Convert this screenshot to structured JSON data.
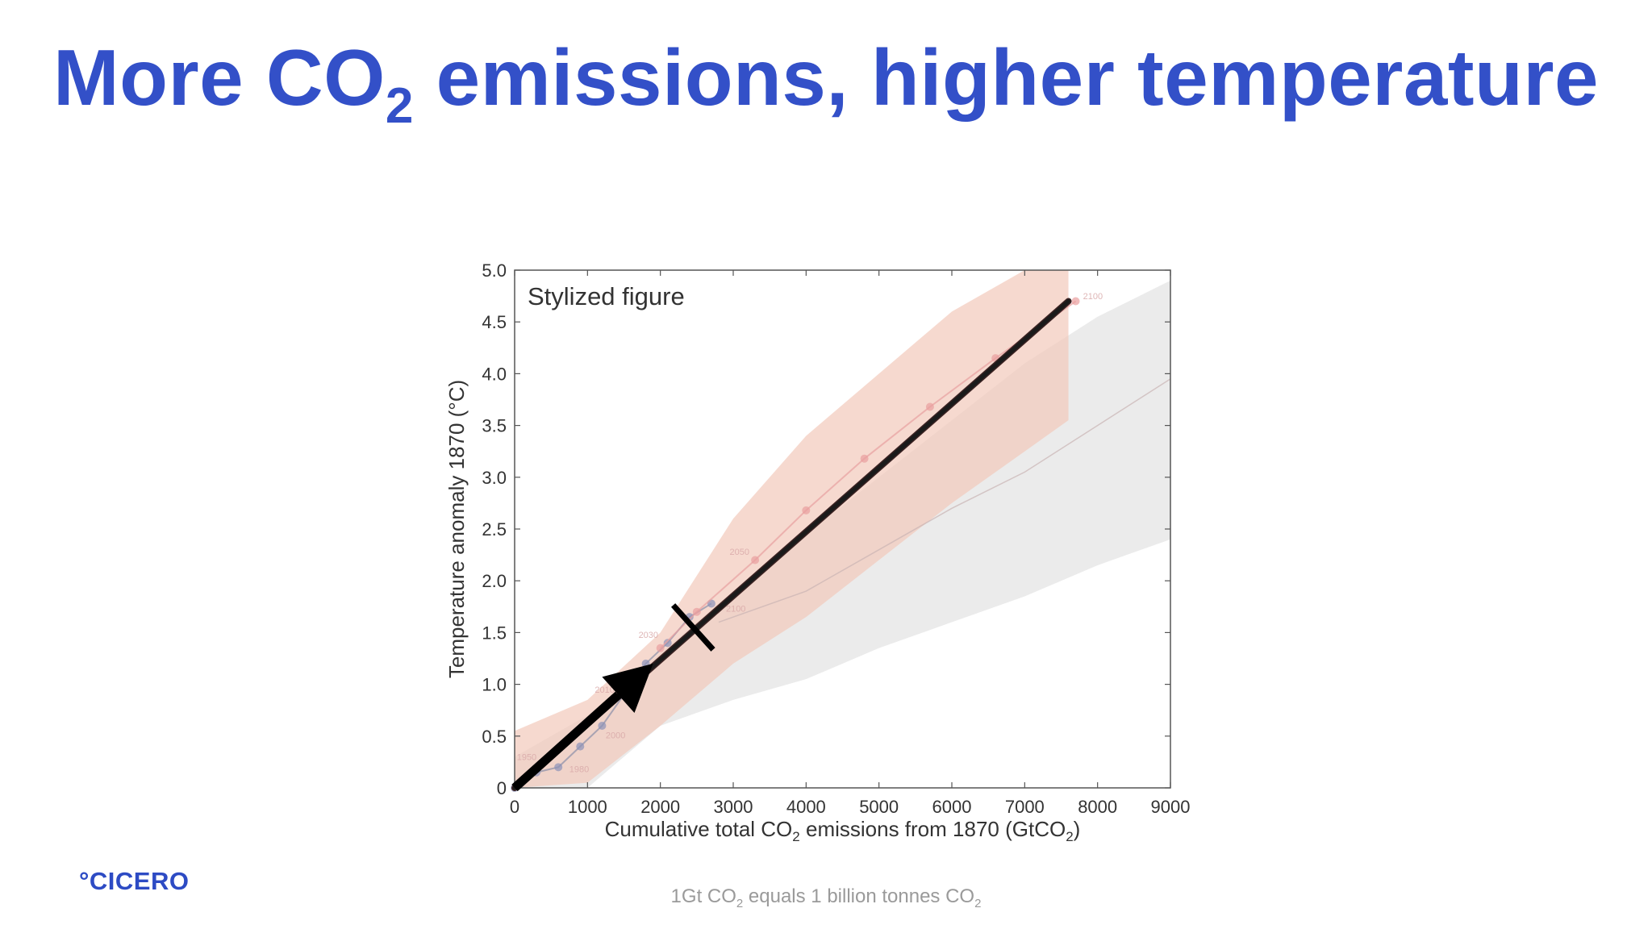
{
  "slide": {
    "title_pre": "More CO",
    "title_sub": "2",
    "title_post": " emissions, higher temperature"
  },
  "logo": "°CICERO",
  "footnote": {
    "pre": "1Gt CO",
    "sub1": "2",
    "mid": " equals 1 billion tonnes CO",
    "sub2": "2"
  },
  "colors": {
    "title": "#3350c8",
    "logo": "#2d4bc4",
    "main_line": "#1a1a1a",
    "red_band": "#f2c9bb",
    "grey_band": "#e4e4e4",
    "red_series": "#e8a0a0",
    "blue_points": "#7f86cc"
  },
  "chart_data": {
    "type": "line",
    "annotation": "Stylized figure",
    "xlabel_pre": "Cumulative total CO",
    "xlabel_sub": "2",
    "xlabel_mid": " emissions from 1870 (GtCO",
    "xlabel_sub2": "2",
    "xlabel_post": ")",
    "ylabel": "Temperature anomaly 1870 (°C)",
    "xlim": [
      0,
      9000
    ],
    "ylim": [
      0,
      5
    ],
    "x_ticks": [
      0,
      1000,
      2000,
      3000,
      4000,
      5000,
      6000,
      7000,
      8000,
      9000
    ],
    "x_tick_labels": [
      "0",
      "1000",
      "2000",
      "3000",
      "4000",
      "5000",
      "6000",
      "7000",
      "8000",
      "9000"
    ],
    "y_ticks": [
      0,
      0.5,
      1.0,
      1.5,
      2.0,
      2.5,
      3.0,
      3.5,
      4.0,
      4.5,
      5.0
    ],
    "y_tick_labels": [
      "0",
      "0.5",
      "1.0",
      "1.5",
      "2.0",
      "2.5",
      "3.0",
      "3.5",
      "4.0",
      "4.5",
      "5.0"
    ],
    "grid": false,
    "stylized_line": {
      "x": [
        0,
        7600
      ],
      "y": [
        0,
        4.7
      ]
    },
    "arrow": {
      "x": [
        0,
        1900
      ],
      "y": [
        0,
        1.2
      ]
    },
    "marker": {
      "x": 2450,
      "y": 1.55
    },
    "red_band": {
      "x": [
        0,
        1000,
        2000,
        3000,
        4000,
        5000,
        6000,
        7000,
        7600
      ],
      "upper": [
        0.55,
        0.85,
        1.5,
        2.6,
        3.4,
        4.0,
        4.6,
        5.0,
        5.0
      ],
      "lower": [
        0.0,
        0.05,
        0.6,
        1.2,
        1.65,
        2.2,
        2.75,
        3.25,
        3.55
      ]
    },
    "grey_band": {
      "x": [
        0,
        1000,
        2000,
        3000,
        4000,
        5000,
        6000,
        7000,
        8000,
        9000
      ],
      "upper": [
        0.3,
        0.7,
        1.3,
        1.9,
        2.45,
        3.0,
        3.55,
        4.1,
        4.55,
        4.9
      ],
      "lower": [
        0.0,
        0.0,
        0.6,
        0.85,
        1.05,
        1.35,
        1.6,
        1.85,
        2.15,
        2.4
      ]
    },
    "series": [
      {
        "x": [
          0,
          300,
          600,
          900,
          1200,
          1500,
          1800,
          2100,
          2400,
          2700
        ],
        "y": [
          0.0,
          0.15,
          0.2,
          0.4,
          0.6,
          0.9,
          1.2,
          1.4,
          1.65,
          1.78
        ]
      },
      {
        "x": [
          2000,
          2500,
          3300,
          4000,
          4800,
          5700,
          6600,
          7700
        ],
        "y": [
          1.35,
          1.7,
          2.2,
          2.68,
          3.18,
          3.68,
          4.15,
          4.7
        ]
      },
      {
        "x": [
          2800,
          4000,
          5000,
          6000,
          7000,
          8000,
          9000
        ],
        "y": [
          1.6,
          1.9,
          2.3,
          2.7,
          3.05,
          3.5,
          3.95
        ]
      }
    ],
    "faint_labels": [
      {
        "text": "2100",
        "x": 7800,
        "y": 4.72
      },
      {
        "text": "2100",
        "x": 2900,
        "y": 1.7
      },
      {
        "text": "2050",
        "x": 2950,
        "y": 2.25
      },
      {
        "text": "2030",
        "x": 1700,
        "y": 1.45
      },
      {
        "text": "2010",
        "x": 1100,
        "y": 0.92
      },
      {
        "text": "2000",
        "x": 1250,
        "y": 0.48
      },
      {
        "text": "1950",
        "x": 30,
        "y": 0.27
      },
      {
        "text": "1980",
        "x": 750,
        "y": 0.15
      }
    ]
  }
}
